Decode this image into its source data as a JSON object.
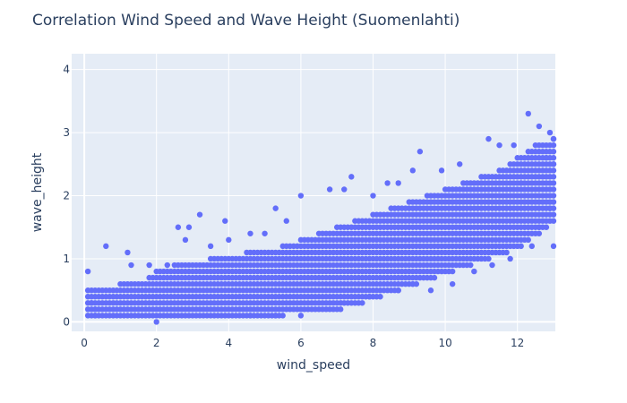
{
  "chart_data": {
    "type": "scatter",
    "title": "Correlation Wind Speed and Wave Height (Suomenlahti)",
    "xlabel": "wind_speed",
    "ylabel": "wave_height",
    "xlim": [
      -0.35,
      13.05
    ],
    "ylim": [
      -0.15,
      4.25
    ],
    "x_ticks": [
      0,
      2,
      4,
      6,
      8,
      10,
      12
    ],
    "y_ticks": [
      0,
      1,
      2,
      3,
      4
    ],
    "grid": true,
    "legend": "none",
    "marker_color": "#636efa",
    "background_color": "#e5ecf6",
    "series": [
      {
        "points": [
          [
            0.1,
            0.8
          ],
          [
            0.2,
            0.3
          ],
          [
            0.3,
            0.2
          ],
          [
            0.6,
            1.2
          ],
          [
            1.2,
            1.1
          ],
          [
            1.3,
            0.9
          ],
          [
            1.8,
            0.9
          ],
          [
            2.3,
            0.9
          ],
          [
            2.6,
            1.5
          ],
          [
            2.8,
            1.3
          ],
          [
            2.9,
            1.5
          ],
          [
            3.2,
            1.7
          ],
          [
            3.5,
            1.2
          ],
          [
            3.9,
            1.6
          ],
          [
            4.0,
            1.3
          ],
          [
            4.6,
            1.4
          ],
          [
            5.0,
            1.4
          ],
          [
            5.3,
            1.8
          ],
          [
            5.6,
            1.6
          ],
          [
            6.0,
            2.0
          ],
          [
            6.8,
            2.1
          ],
          [
            7.2,
            2.1
          ],
          [
            7.4,
            2.3
          ],
          [
            8.0,
            2.0
          ],
          [
            8.4,
            2.2
          ],
          [
            8.7,
            2.2
          ],
          [
            9.1,
            2.4
          ],
          [
            9.3,
            2.7
          ],
          [
            9.9,
            2.4
          ],
          [
            10.4,
            2.5
          ],
          [
            11.2,
            2.9
          ],
          [
            11.5,
            2.8
          ],
          [
            11.9,
            2.8
          ],
          [
            12.3,
            3.3
          ],
          [
            12.6,
            3.1
          ],
          [
            12.9,
            3.0
          ],
          [
            13.0,
            2.9
          ],
          [
            7.9,
            0.4
          ],
          [
            8.7,
            0.5
          ],
          [
            9.1,
            0.6
          ],
          [
            9.6,
            0.5
          ],
          [
            10.2,
            0.6
          ],
          [
            10.8,
            0.8
          ],
          [
            11.3,
            0.9
          ],
          [
            11.8,
            1.0
          ],
          [
            12.4,
            1.2
          ],
          [
            12.6,
            1.5
          ],
          [
            13.0,
            1.2
          ],
          [
            6.0,
            0.1
          ],
          [
            5.3,
            0.1
          ],
          [
            4.6,
            0.1
          ],
          [
            7.1,
            0.2
          ],
          [
            2.0,
            0.0
          ],
          [
            0.3,
            0.1
          ],
          [
            13.0,
            2.5
          ],
          [
            12.8,
            2.6
          ],
          [
            12.1,
            2.2
          ],
          [
            12.9,
            1.8
          ]
        ],
        "density_band": [
          {
            "x": 0.5,
            "low": 0.1,
            "high": 0.5
          },
          {
            "x": 1.0,
            "low": 0.1,
            "high": 0.6
          },
          {
            "x": 1.5,
            "low": 0.1,
            "high": 0.6
          },
          {
            "x": 2.0,
            "low": 0.1,
            "high": 0.8
          },
          {
            "x": 2.5,
            "low": 0.1,
            "high": 0.9
          },
          {
            "x": 3.0,
            "low": 0.1,
            "high": 0.9
          },
          {
            "x": 3.5,
            "low": 0.1,
            "high": 1.0
          },
          {
            "x": 4.0,
            "low": 0.1,
            "high": 1.0
          },
          {
            "x": 4.5,
            "low": 0.1,
            "high": 1.1
          },
          {
            "x": 5.0,
            "low": 0.1,
            "high": 1.1
          },
          {
            "x": 5.5,
            "low": 0.15,
            "high": 1.2
          },
          {
            "x": 6.0,
            "low": 0.2,
            "high": 1.3
          },
          {
            "x": 6.5,
            "low": 0.2,
            "high": 1.4
          },
          {
            "x": 7.0,
            "low": 0.25,
            "high": 1.5
          },
          {
            "x": 7.5,
            "low": 0.3,
            "high": 1.6
          },
          {
            "x": 8.0,
            "low": 0.4,
            "high": 1.7
          },
          {
            "x": 8.5,
            "low": 0.5,
            "high": 1.8
          },
          {
            "x": 9.0,
            "low": 0.6,
            "high": 1.9
          },
          {
            "x": 9.5,
            "low": 0.7,
            "high": 2.0
          },
          {
            "x": 10.0,
            "low": 0.8,
            "high": 2.1
          },
          {
            "x": 10.5,
            "low": 0.9,
            "high": 2.2
          },
          {
            "x": 11.0,
            "low": 1.0,
            "high": 2.3
          },
          {
            "x": 11.5,
            "low": 1.1,
            "high": 2.4
          },
          {
            "x": 12.0,
            "low": 1.2,
            "high": 2.6
          },
          {
            "x": 12.5,
            "low": 1.4,
            "high": 2.8
          },
          {
            "x": 13.0,
            "low": 1.6,
            "high": 2.9
          }
        ]
      }
    ]
  }
}
